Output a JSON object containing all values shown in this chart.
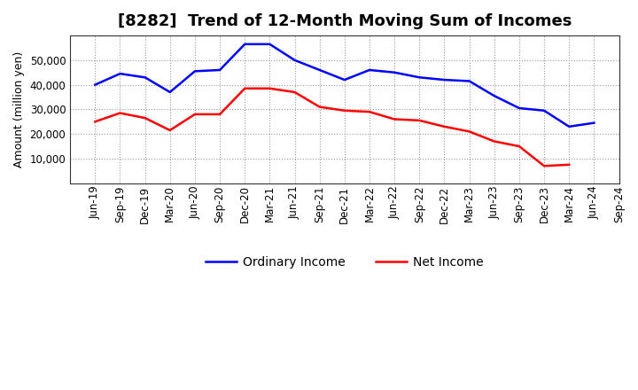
{
  "title": "[8282]  Trend of 12-Month Moving Sum of Incomes",
  "ylabel": "Amount (million yen)",
  "background_color": "#ffffff",
  "plot_bg_color": "#ffffff",
  "grid_color": "#999999",
  "x_labels": [
    "Jun-19",
    "Sep-19",
    "Dec-19",
    "Mar-20",
    "Jun-20",
    "Sep-20",
    "Dec-20",
    "Mar-21",
    "Jun-21",
    "Sep-21",
    "Dec-21",
    "Mar-22",
    "Jun-22",
    "Sep-22",
    "Dec-22",
    "Mar-23",
    "Jun-23",
    "Sep-23",
    "Dec-23",
    "Mar-24",
    "Jun-24",
    "Sep-24"
  ],
  "ordinary_income": [
    40000,
    44500,
    43000,
    37000,
    45500,
    46000,
    56500,
    56500,
    50000,
    46000,
    42000,
    46000,
    45000,
    43000,
    42000,
    41500,
    35500,
    30500,
    29500,
    23000,
    24500,
    null
  ],
  "net_income": [
    25000,
    28500,
    26500,
    21500,
    28000,
    28000,
    38500,
    38500,
    37000,
    31000,
    29500,
    29000,
    26000,
    25500,
    23000,
    21000,
    17000,
    15000,
    7000,
    7500,
    null,
    null
  ],
  "ordinary_color": "#0000ff",
  "net_color": "#ff0000",
  "ylim": [
    0,
    60000
  ],
  "yticks": [
    10000,
    20000,
    30000,
    40000,
    50000
  ],
  "legend_labels": [
    "Ordinary Income",
    "Net Income"
  ],
  "title_fontsize": 13,
  "axis_fontsize": 9,
  "tick_fontsize": 8.5
}
